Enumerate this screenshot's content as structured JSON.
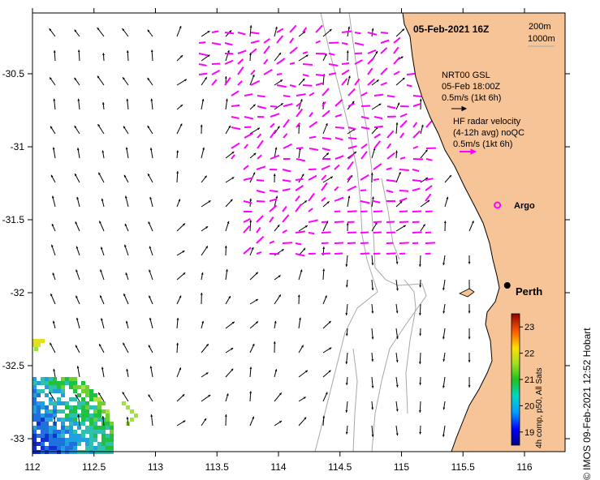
{
  "header": {
    "datetime": "05-Feb-2021 16Z"
  },
  "depth_legend": {
    "contour_1": "200m",
    "contour_2": "1000m"
  },
  "gsl_legend": {
    "line1": "NRT00 GSL",
    "line2": "05-Feb 18:00Z",
    "scale": "0.5m/s (1kt 6h)"
  },
  "hf_legend": {
    "line1": "HF radar velocity",
    "line2": "(4-12h avg) noQC",
    "scale": "0.5m/s (1kt 6h)"
  },
  "argo_label": "Argo",
  "city_label": "Perth",
  "colorbar": {
    "label": "4h comp, p50, All Sats",
    "ticks": [
      "19",
      "20",
      "21",
      "22",
      "23"
    ],
    "min": 18.5,
    "max": 23.5
  },
  "credit": "© IMOS 09-Feb-2021 12:52 Hobart",
  "axes": {
    "x_ticks": [
      "112",
      "112.5",
      "113",
      "113.5",
      "114",
      "114.5",
      "115",
      "115.5",
      "116"
    ],
    "y_ticks": [
      "-30.5",
      "-31",
      "-31.5",
      "-32",
      "-32.5",
      "-33"
    ],
    "x_range": [
      112,
      116.3
    ],
    "y_range": [
      -33.1,
      -30.1
    ]
  },
  "colors": {
    "land": "#f6c496",
    "hf_arrows": "#ff00ff",
    "model_arrows": "#000000",
    "isobaths": "#a8a8a8",
    "argo": "#ff00ff"
  },
  "locations": {
    "perth": {
      "lon": 115.86,
      "lat": -31.95
    },
    "argo": {
      "lon": 115.78,
      "lat": -31.4
    }
  }
}
